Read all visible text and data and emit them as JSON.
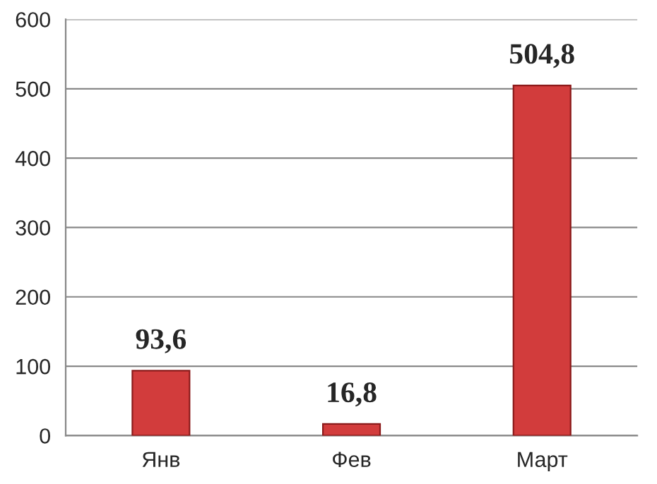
{
  "chart_data": {
    "type": "bar",
    "categories": [
      "Янв",
      "Фев",
      "Март"
    ],
    "values": [
      93.6,
      16.8,
      504.8
    ],
    "value_labels": [
      "93,6",
      "16,8",
      "504,8"
    ],
    "color": "#d23c3c",
    "ylim": [
      0,
      600
    ],
    "yticks": [
      0,
      100,
      200,
      300,
      400,
      500,
      600
    ],
    "grid": "y"
  }
}
